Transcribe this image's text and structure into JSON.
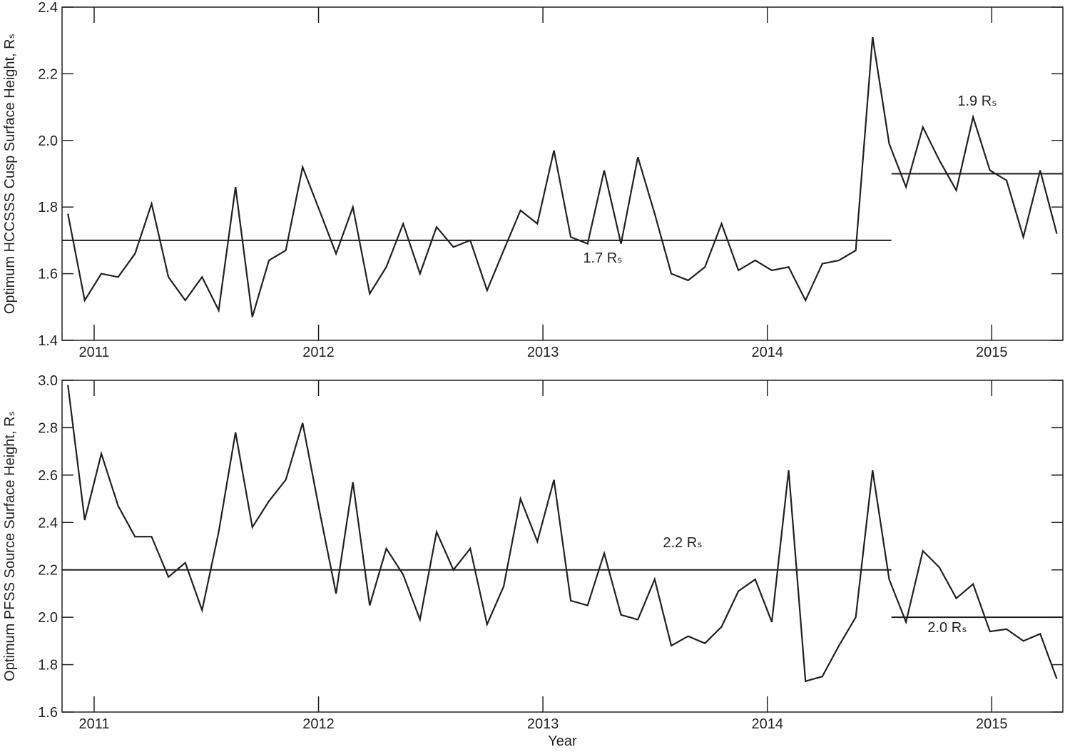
{
  "chart_data": [
    {
      "type": "line",
      "y_label": "Optimum HCCSSS Cusp Surface Height, Rₛ",
      "x": [
        2010.883,
        2010.958,
        2011.032,
        2011.107,
        2011.182,
        2011.256,
        2011.331,
        2011.406,
        2011.481,
        2011.555,
        2011.63,
        2011.705,
        2011.779,
        2011.854,
        2011.929,
        2012.004,
        2012.078,
        2012.153,
        2012.228,
        2012.302,
        2012.377,
        2012.452,
        2012.526,
        2012.601,
        2012.676,
        2012.751,
        2012.825,
        2012.9,
        2012.975,
        2013.049,
        2013.124,
        2013.199,
        2013.273,
        2013.348,
        2013.423,
        2013.498,
        2013.572,
        2013.647,
        2013.722,
        2013.796,
        2013.871,
        2013.946,
        2014.02,
        2014.095,
        2014.17,
        2014.245,
        2014.319,
        2014.394,
        2014.469,
        2014.543,
        2014.618,
        2014.693,
        2014.767,
        2014.842,
        2014.917,
        2014.992,
        2015.066,
        2015.141,
        2015.216,
        2015.29
      ],
      "values": [
        1.78,
        1.52,
        1.6,
        1.59,
        1.66,
        1.81,
        1.59,
        1.52,
        1.59,
        1.49,
        1.86,
        1.47,
        1.64,
        1.67,
        1.92,
        1.79,
        1.66,
        1.8,
        1.54,
        1.62,
        1.75,
        1.6,
        1.74,
        1.68,
        1.7,
        1.55,
        1.67,
        1.79,
        1.75,
        1.97,
        1.71,
        1.69,
        1.91,
        1.69,
        1.95,
        1.78,
        1.6,
        1.58,
        1.62,
        1.75,
        1.61,
        1.64,
        1.61,
        1.62,
        1.52,
        1.63,
        1.64,
        1.67,
        2.31,
        1.99,
        1.86,
        2.04,
        1.94,
        1.85,
        2.07,
        1.91,
        1.88,
        1.71,
        1.91,
        1.72
      ],
      "color": "#231f20",
      "hlines": [
        {
          "value": 1.7,
          "x": [
            2010.857,
            2014.553
          ],
          "label": "1.7 Rₛ"
        },
        {
          "value": 1.9,
          "x": [
            2014.553,
            2015.317
          ],
          "label": "1.9 Rₛ"
        }
      ],
      "xlim": [
        2010.857,
        2015.317
      ],
      "xticks": [
        2011,
        2012,
        2013,
        2014,
        2015
      ],
      "ylim": [
        1.4,
        2.4
      ],
      "yticks": [
        1.4,
        1.6,
        1.8,
        {
          "value": 2,
          "label": "2.0"
        },
        2.2,
        2.4
      ]
    },
    {
      "type": "line",
      "y_label": "Optimum PFSS Source Surface Height, Rₛ",
      "x_label": "Year",
      "x": [
        2010.883,
        2010.958,
        2011.032,
        2011.107,
        2011.182,
        2011.256,
        2011.331,
        2011.406,
        2011.481,
        2011.555,
        2011.63,
        2011.705,
        2011.779,
        2011.854,
        2011.929,
        2012.004,
        2012.078,
        2012.153,
        2012.228,
        2012.302,
        2012.377,
        2012.452,
        2012.526,
        2012.601,
        2012.676,
        2012.751,
        2012.825,
        2012.9,
        2012.975,
        2013.049,
        2013.124,
        2013.199,
        2013.273,
        2013.348,
        2013.423,
        2013.498,
        2013.572,
        2013.647,
        2013.722,
        2013.796,
        2013.871,
        2013.946,
        2014.02,
        2014.095,
        2014.17,
        2014.245,
        2014.319,
        2014.394,
        2014.469,
        2014.543,
        2014.618,
        2014.693,
        2014.767,
        2014.842,
        2014.917,
        2014.992,
        2015.066,
        2015.141,
        2015.216,
        2015.29
      ],
      "values": [
        2.98,
        2.41,
        2.69,
        2.47,
        2.34,
        2.34,
        2.17,
        2.23,
        2.03,
        2.36,
        2.78,
        2.38,
        2.49,
        2.58,
        2.82,
        2.45,
        2.1,
        2.57,
        2.05,
        2.29,
        2.18,
        1.99,
        2.36,
        2.2,
        2.29,
        1.97,
        2.13,
        2.5,
        2.32,
        2.58,
        2.07,
        2.05,
        2.27,
        2.01,
        1.99,
        2.16,
        1.88,
        1.92,
        1.89,
        1.96,
        2.11,
        2.16,
        1.98,
        2.62,
        1.73,
        1.75,
        1.88,
        2.0,
        2.62,
        2.16,
        1.98,
        2.28,
        2.21,
        2.08,
        2.14,
        1.94,
        1.95,
        1.9,
        1.93,
        1.74
      ],
      "color": "#231f20",
      "hlines": [
        {
          "value": 2.2,
          "x": [
            2010.857,
            2014.553
          ],
          "label": "2.2 Rₛ"
        },
        {
          "value": 2,
          "x": [
            2014.553,
            2015.317
          ],
          "label": "2.0 Rₛ"
        }
      ],
      "xlim": [
        2010.857,
        2015.317
      ],
      "xticks": [
        2011,
        2012,
        2013,
        2014,
        2015
      ],
      "ylim": [
        1.6,
        3
      ],
      "yticks": [
        1.6,
        1.8,
        {
          "value": 2,
          "label": "2.0"
        },
        2.2,
        2.4,
        2.6,
        2.8,
        {
          "value": 3,
          "label": "3.0"
        }
      ]
    }
  ]
}
